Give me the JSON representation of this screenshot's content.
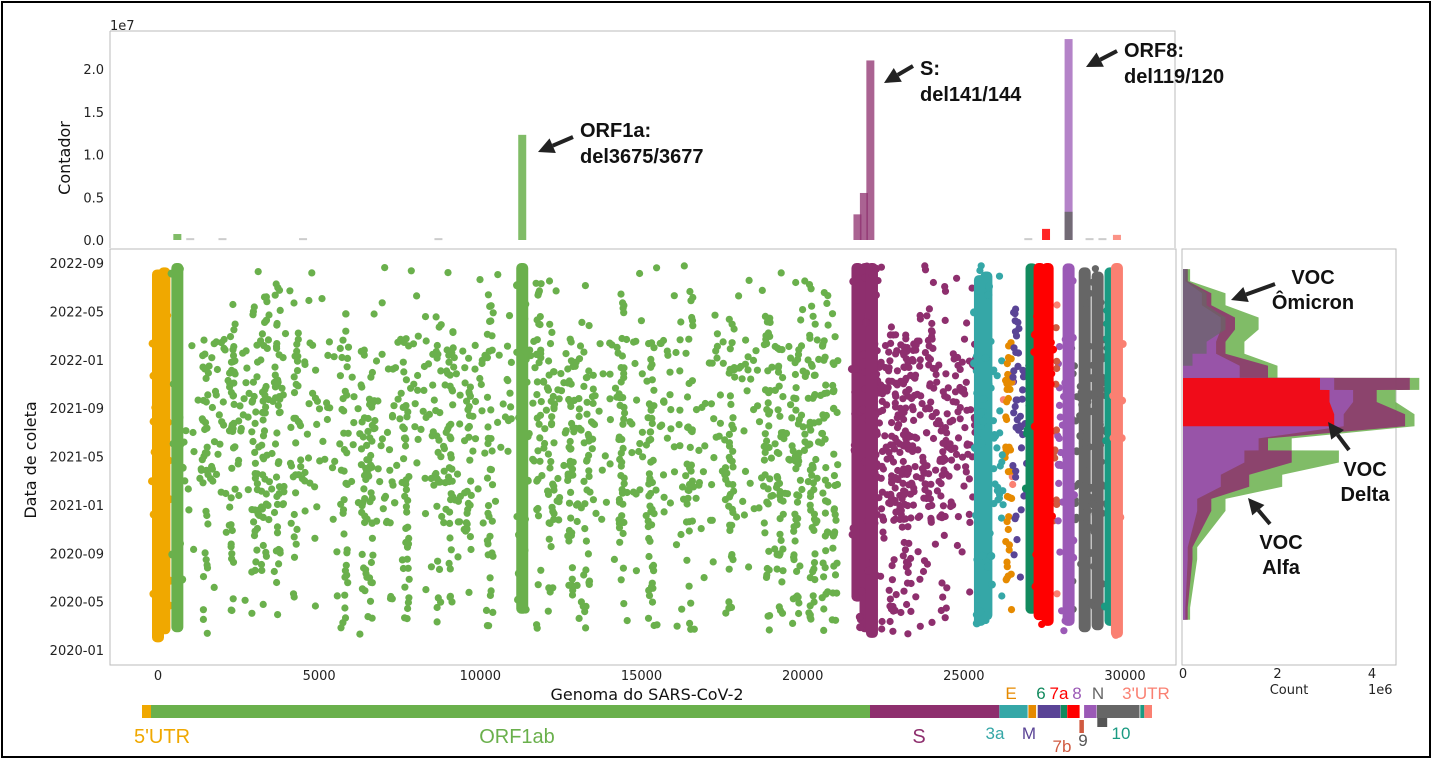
{
  "colors": {
    "5'UTR": "#f0a800",
    "ORF1ab": "#6ab04c",
    "S": "#8e2f6e",
    "3a": "#35a7a7",
    "E": "#e68a00",
    "M": "#5a4496",
    "6": "#128a5e",
    "7a": "#ff0000",
    "7b": "#d05a40",
    "8": "#9b59b6",
    "N": "#666666",
    "9": "#555555",
    "10": "#1a9a82",
    "3'UTR": "#fa8072"
  },
  "chart_data": [
    {
      "type": "bar",
      "panel": "top-histogram",
      "ylabel": "Contador",
      "y_multiplier": "1e7",
      "ylim": [
        0,
        2.4
      ],
      "yticks": [
        "0.0",
        "0.5",
        "1.0",
        "1.5",
        "2.0"
      ],
      "grid": false,
      "bars": [
        {
          "x": 600,
          "value": 0.07,
          "region": "ORF1ab"
        },
        {
          "x": 11300,
          "value": 1.23,
          "region": "ORF1ab"
        },
        {
          "x": 21700,
          "value": 0.3,
          "region": "S"
        },
        {
          "x": 21900,
          "value": 0.55,
          "region": "S"
        },
        {
          "x": 22100,
          "value": 2.1,
          "region": "S"
        },
        {
          "x": 27550,
          "value": 0.13,
          "region": "7a"
        },
        {
          "x": 28250,
          "value": 2.35,
          "region": "8"
        },
        {
          "x": 28250,
          "value": 0.33,
          "region": "N"
        },
        {
          "x": 29750,
          "value": 0.06,
          "region": "3'UTR"
        }
      ],
      "annotations": [
        {
          "lines": [
            "ORF1a:",
            "del3675/3677"
          ],
          "x": 11300
        },
        {
          "lines": [
            "S:",
            "del141/144"
          ],
          "x": 22100
        },
        {
          "lines": [
            "ORF8:",
            "del119/120"
          ],
          "x": 28250
        }
      ]
    },
    {
      "type": "scatter",
      "panel": "main-scatter",
      "xlabel": "Genoma do SARS-CoV-2",
      "ylabel": "Data de coleta",
      "xlim": [
        -300,
        30600
      ],
      "xticks": [
        "0",
        "5000",
        "10000",
        "15000",
        "20000",
        "25000",
        "30000"
      ],
      "yticks": [
        "2020-01",
        "2020-05",
        "2020-09",
        "2021-01",
        "2021-05",
        "2021-09",
        "2022-01",
        "2022-05",
        "2022-09"
      ],
      "ylim": [
        "2019-12-15",
        "2022-09-20"
      ],
      "grid": false,
      "dense_columns": [
        {
          "x": 0,
          "from": "2020-01-20",
          "to": "2022-08-15",
          "region": "5'UTR"
        },
        {
          "x": 200,
          "from": "2020-02-10",
          "to": "2022-08-20",
          "region": "5'UTR"
        },
        {
          "x": 600,
          "from": "2020-02-15",
          "to": "2022-09-01",
          "region": "ORF1ab"
        },
        {
          "x": 11300,
          "from": "2020-04-01",
          "to": "2022-09-01",
          "region": "ORF1ab"
        },
        {
          "x": 21700,
          "from": "2020-05-01",
          "to": "2022-09-01",
          "region": "S"
        },
        {
          "x": 21950,
          "from": "2020-02-15",
          "to": "2022-09-01",
          "region": "S"
        },
        {
          "x": 22150,
          "from": "2020-02-01",
          "to": "2022-09-01",
          "region": "S"
        },
        {
          "x": 25500,
          "from": "2020-03-01",
          "to": "2022-08-01",
          "region": "3a"
        },
        {
          "x": 25700,
          "from": "2020-03-15",
          "to": "2022-08-10",
          "region": "3a"
        },
        {
          "x": 27100,
          "from": "2020-04-01",
          "to": "2022-08-30",
          "region": "6"
        },
        {
          "x": 27350,
          "from": "2020-03-15",
          "to": "2022-09-01",
          "region": "7a"
        },
        {
          "x": 27600,
          "from": "2020-03-01",
          "to": "2022-09-01",
          "region": "7a"
        },
        {
          "x": 28250,
          "from": "2020-03-01",
          "to": "2022-08-30",
          "region": "8"
        },
        {
          "x": 28750,
          "from": "2020-02-15",
          "to": "2022-08-20",
          "region": "N"
        },
        {
          "x": 29150,
          "from": "2020-02-20",
          "to": "2022-08-10",
          "region": "N"
        },
        {
          "x": 29550,
          "from": "2020-03-01",
          "to": "2022-08-20",
          "region": "10"
        },
        {
          "x": 29750,
          "from": "2020-02-01",
          "to": "2022-09-01",
          "region": "3'UTR"
        }
      ]
    },
    {
      "type": "bar",
      "panel": "right-histogram",
      "orientation": "horizontal",
      "xlabel": "Count",
      "x_multiplier": "1e6",
      "xticks": [
        "0",
        "2",
        "4"
      ],
      "xlim": [
        0,
        5.2
      ],
      "grid": false,
      "profiles": [
        {
          "region": "ORF1ab",
          "points": [
            [
              "2020-04",
              0.15
            ],
            [
              "2020-09",
              0.3
            ],
            [
              "2021-01",
              0.9
            ],
            [
              "2021-03",
              2.1
            ],
            [
              "2021-05",
              3.3
            ],
            [
              "2021-06",
              2.3
            ],
            [
              "2021-08",
              4.9
            ],
            [
              "2021-10",
              4.5
            ],
            [
              "2021-11",
              5.0
            ],
            [
              "2021-12",
              2.0
            ],
            [
              "2022-02",
              1.3
            ],
            [
              "2022-04",
              1.6
            ],
            [
              "2022-06",
              0.9
            ],
            [
              "2022-08",
              0.15
            ]
          ]
        },
        {
          "region": "S",
          "points": [
            [
              "2020-04",
              0.1
            ],
            [
              "2020-09",
              0.2
            ],
            [
              "2021-01",
              0.6
            ],
            [
              "2021-03",
              1.4
            ],
            [
              "2021-05",
              2.3
            ],
            [
              "2021-06",
              1.8
            ],
            [
              "2021-08",
              4.7
            ],
            [
              "2021-10",
              4.1
            ],
            [
              "2021-11",
              4.8
            ],
            [
              "2021-12",
              1.8
            ],
            [
              "2022-02",
              0.9
            ],
            [
              "2022-04",
              1.1
            ],
            [
              "2022-06",
              0.6
            ],
            [
              "2022-08",
              0.1
            ]
          ]
        },
        {
          "region": "8",
          "points": [
            [
              "2020-04",
              0.05
            ],
            [
              "2020-09",
              0.1
            ],
            [
              "2021-01",
              0.3
            ],
            [
              "2021-03",
              0.8
            ],
            [
              "2021-05",
              1.3
            ],
            [
              "2021-06",
              1.6
            ],
            [
              "2021-08",
              3.4
            ],
            [
              "2021-10",
              3.6
            ],
            [
              "2021-11",
              3.2
            ],
            [
              "2021-12",
              1.2
            ],
            [
              "2022-02",
              0.7
            ],
            [
              "2022-04",
              0.8
            ],
            [
              "2022-06",
              0.4
            ],
            [
              "2022-08",
              0.05
            ]
          ]
        },
        {
          "region": "N",
          "points": [
            [
              "2022-01",
              0.2
            ],
            [
              "2022-02",
              0.5
            ],
            [
              "2022-04",
              0.9
            ],
            [
              "2022-06",
              0.5
            ],
            [
              "2022-08",
              0.1
            ]
          ]
        },
        {
          "region": "7a",
          "points": [
            [
              "2021-08",
              3.2
            ],
            [
              "2021-10",
              3.1
            ],
            [
              "2021-11",
              2.9
            ]
          ]
        }
      ],
      "annotations": [
        {
          "lines": [
            "VOC",
            "Ômicron"
          ]
        },
        {
          "lines": [
            "VOC",
            "Delta"
          ]
        },
        {
          "lines": [
            "VOC",
            "Alfa"
          ]
        }
      ]
    }
  ],
  "genome_map": {
    "segments": [
      {
        "label": "5'UTR",
        "start": 0,
        "end": 265
      },
      {
        "label": "ORF1ab",
        "start": 265,
        "end": 21555
      },
      {
        "label": "S",
        "start": 21555,
        "end": 25384
      },
      {
        "label": "3a",
        "start": 25384,
        "end": 26220
      },
      {
        "label": "E",
        "start": 26245,
        "end": 26472
      },
      {
        "label": "M",
        "start": 26520,
        "end": 27191
      },
      {
        "label": "6",
        "start": 27201,
        "end": 27387
      },
      {
        "label": "7a",
        "start": 27393,
        "end": 27759
      },
      {
        "label": "7b",
        "start": 27755,
        "end": 27887
      },
      {
        "label": "8",
        "start": 27893,
        "end": 28259
      },
      {
        "label": "N",
        "start": 28273,
        "end": 29533
      },
      {
        "label": "9",
        "start": 28283,
        "end": 28577
      },
      {
        "label": "10",
        "start": 29557,
        "end": 29674
      },
      {
        "label": "3'UTR",
        "start": 29674,
        "end": 29903
      }
    ]
  }
}
